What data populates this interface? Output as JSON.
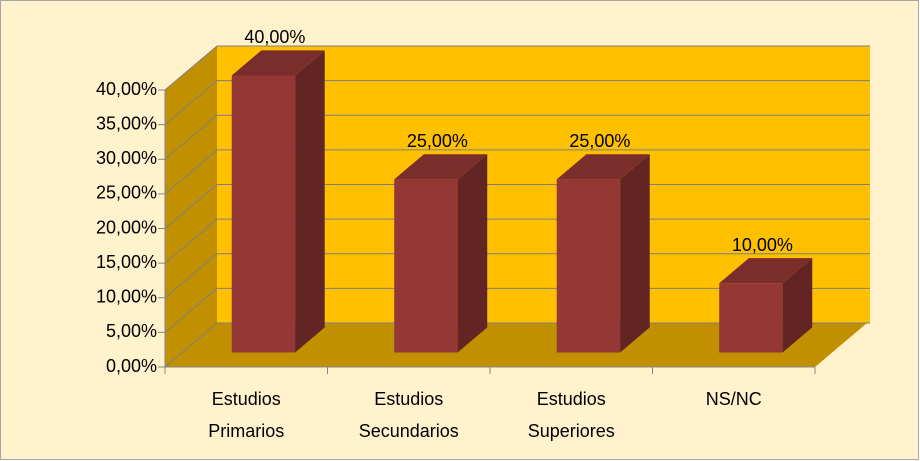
{
  "chart_data": {
    "type": "bar3d",
    "categories": [
      "Estudios Primarios",
      "Estudios Secundarios",
      "Estudios Superiores",
      "NS/NC"
    ],
    "values": [
      40,
      25,
      25,
      10
    ],
    "value_labels": [
      "40,00%",
      "25,00%",
      "25,00%",
      "10,00%"
    ],
    "color": "#953735",
    "ylim": [
      0,
      40
    ],
    "yticks": [
      {
        "value": 0,
        "label": "0,00%"
      },
      {
        "value": 5,
        "label": "5,00%"
      },
      {
        "value": 10,
        "label": "10,00%"
      },
      {
        "value": 15,
        "label": "15,00%"
      },
      {
        "value": 20,
        "label": "20,00%"
      },
      {
        "value": 25,
        "label": "25,00%"
      },
      {
        "value": 30,
        "label": "30,00%"
      },
      {
        "value": 35,
        "label": "35,00%"
      },
      {
        "value": 40,
        "label": "40,00%"
      }
    ],
    "grid": true
  }
}
